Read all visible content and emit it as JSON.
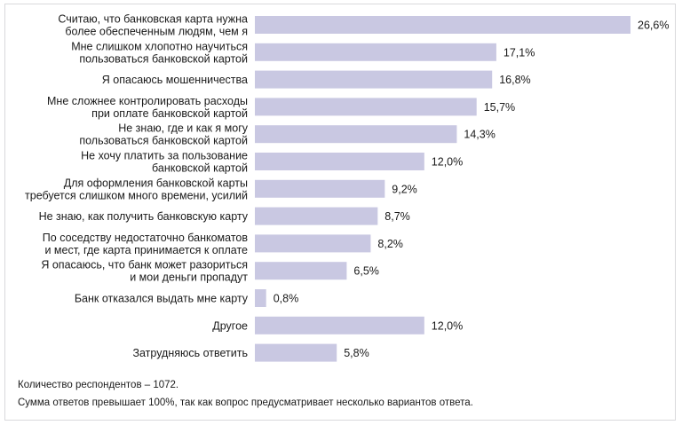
{
  "chart_data": {
    "type": "bar",
    "orientation": "horizontal",
    "title": "",
    "xlabel": "",
    "ylabel": "",
    "xlim": [
      0,
      26.6
    ],
    "grid": false,
    "legend": "none",
    "bar_color": "#c9c8e2",
    "categories": [
      [
        "Считаю, что банковская карта нужна",
        "более обеспеченным людям, чем я"
      ],
      [
        "Мне слишком хлопотно научиться",
        "пользоваться банковской картой"
      ],
      [
        "Я опасаюсь мошенничества"
      ],
      [
        "Мне сложнее контролировать расходы",
        "при оплате банковской картой"
      ],
      [
        "Не знаю, где и как я могу",
        "пользоваться банковской картой"
      ],
      [
        "Не хочу платить за пользование",
        "банковской картой"
      ],
      [
        "Для оформления банковской карты",
        "требуется слишком много времени, усилий"
      ],
      [
        "Не знаю, как получить банковскую карту"
      ],
      [
        "По соседству недостаточно банкоматов",
        "и мест, где карта принимается к оплате"
      ],
      [
        "Я опасаюсь, что банк может разориться",
        "и мои деньги пропадут"
      ],
      [
        "Банк отказался выдать мне карту"
      ],
      [
        "Другое"
      ],
      [
        "Затрудняюсь ответить"
      ]
    ],
    "values": [
      26.6,
      17.1,
      16.8,
      15.7,
      14.3,
      12.0,
      9.2,
      8.7,
      8.2,
      6.5,
      0.8,
      12.0,
      5.8
    ],
    "value_labels": [
      "26,6%",
      "17,1%",
      "16,8%",
      "15,7%",
      "14,3%",
      "12,0%",
      "9,2%",
      "8,7%",
      "8,2%",
      "6,5%",
      "0,8%",
      "12,0%",
      "5,8%"
    ]
  },
  "footnotes": {
    "respondents": "Количество респондентов – 1072.",
    "sum_note": "Сумма ответов превышает 100%, так как вопрос предусматривает несколько вариантов ответа."
  }
}
